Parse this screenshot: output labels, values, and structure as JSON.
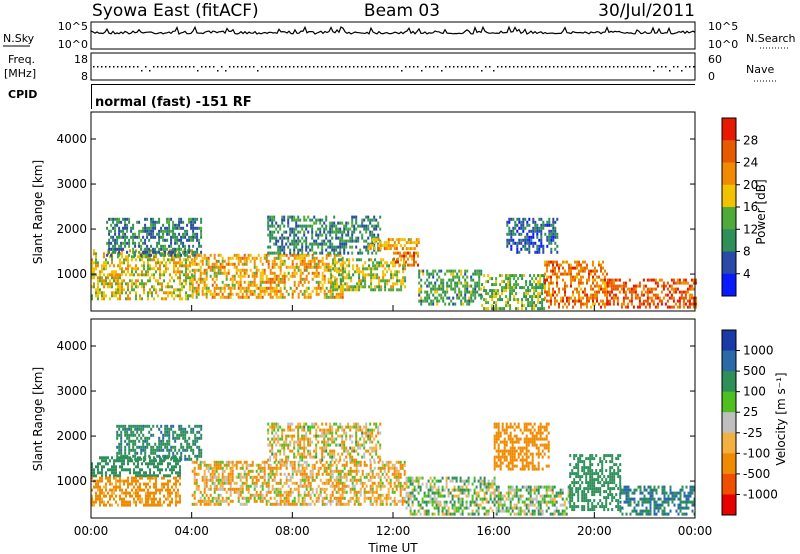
{
  "header": {
    "station": "Syowa East (fitACF)",
    "beam": "Beam 03",
    "date": "30/Jul/2011"
  },
  "noise_panel": {
    "left_label": "N.Sky",
    "left_ticks": [
      "10^5",
      "10^0"
    ],
    "right_ticks": [
      "10^5",
      "10^0"
    ],
    "right_label": "N.Search"
  },
  "freq_panel": {
    "left_label_top": "Freq.",
    "left_label_bottom": "[MHz]",
    "left_ticks": [
      "18",
      "8"
    ],
    "right_ticks": [
      "60",
      "0"
    ],
    "right_label": "Nave"
  },
  "cpid": {
    "label": "CPID",
    "value": "normal (fast) -151 RF"
  },
  "colors": {
    "power": [
      "#0a1aff",
      "#2a4aa8",
      "#2e8f58",
      "#4faa3a",
      "#f2c200",
      "#f08a00",
      "#e65a00",
      "#e61a00"
    ],
    "velocity": [
      "#e60000",
      "#ee5000",
      "#f08a00",
      "#f2b040",
      "#bfbfbf",
      "#4ec020",
      "#2e8f58",
      "#2a6aa8",
      "#1a3aa8"
    ]
  },
  "power_colorbar": {
    "label": "Power [dB]",
    "ticks": [
      "28",
      "24",
      "20",
      "16",
      "12",
      "8",
      "4"
    ]
  },
  "velocity_colorbar": {
    "label": "Velocity [m s⁻¹]",
    "ticks": [
      "1000",
      "500",
      "100",
      "25",
      "-25",
      "-100",
      "-500",
      "-1000"
    ]
  },
  "x_axis": {
    "label": "Time UT",
    "ticks": [
      "00:00",
      "04:00",
      "08:00",
      "12:00",
      "16:00",
      "20:00",
      "00:00"
    ]
  },
  "chart_data": [
    {
      "type": "heatmap",
      "parameter": "power",
      "ylabel": "Slant Range [km]",
      "xlabel": "Time UT",
      "x_range_hours": [
        0,
        24
      ],
      "ylim": [
        180,
        4600
      ],
      "yticks": [
        1000,
        2000,
        3000,
        4000
      ],
      "color_scale_db": [
        0,
        32
      ],
      "echo_regions": [
        {
          "t_start": 0.0,
          "t_end": 4.0,
          "r_min": 450,
          "r_max": 1550,
          "level": 18
        },
        {
          "t_start": 0.6,
          "t_end": 4.4,
          "r_min": 1400,
          "r_max": 2250,
          "level": 9
        },
        {
          "t_start": 4.0,
          "t_end": 10.0,
          "r_min": 500,
          "r_max": 1450,
          "level": 20
        },
        {
          "t_start": 7.0,
          "t_end": 11.5,
          "r_min": 1500,
          "r_max": 2300,
          "level": 10
        },
        {
          "t_start": 9.5,
          "t_end": 12.5,
          "r_min": 650,
          "r_max": 1350,
          "level": 16
        },
        {
          "t_start": 11.0,
          "t_end": 13.0,
          "r_min": 1550,
          "r_max": 1800,
          "level": 20
        },
        {
          "t_start": 12.0,
          "t_end": 13.0,
          "r_min": 1200,
          "r_max": 1500,
          "level": 24
        },
        {
          "t_start": 13.0,
          "t_end": 15.5,
          "r_min": 350,
          "r_max": 1100,
          "level": 12
        },
        {
          "t_start": 15.5,
          "t_end": 18.0,
          "r_min": 250,
          "r_max": 1000,
          "level": 14
        },
        {
          "t_start": 16.5,
          "t_end": 18.5,
          "r_min": 1500,
          "r_max": 2250,
          "level": 7
        },
        {
          "t_start": 18.0,
          "t_end": 20.5,
          "r_min": 250,
          "r_max": 1300,
          "level": 24
        },
        {
          "t_start": 20.5,
          "t_end": 24.0,
          "r_min": 250,
          "r_max": 900,
          "level": 26
        }
      ]
    },
    {
      "type": "heatmap",
      "parameter": "velocity",
      "ylabel": "Slant Range [km]",
      "xlabel": "Time UT",
      "x_range_hours": [
        0,
        24
      ],
      "ylim": [
        180,
        4600
      ],
      "yticks": [
        1000,
        2000,
        3000,
        4000
      ],
      "color_scale_ms": [
        -1000,
        1000
      ],
      "echo_regions": [
        {
          "t_start": 0.0,
          "t_end": 3.5,
          "r_min": 1100,
          "r_max": 1550,
          "velocity": 300
        },
        {
          "t_start": 0.0,
          "t_end": 3.5,
          "r_min": 450,
          "r_max": 1100,
          "velocity": -200
        },
        {
          "t_start": 1.0,
          "t_end": 4.4,
          "r_min": 1500,
          "r_max": 2250,
          "velocity": 400
        },
        {
          "t_start": 4.0,
          "t_end": 12.5,
          "r_min": 500,
          "r_max": 1450,
          "velocity": -80
        },
        {
          "t_start": 7.0,
          "t_end": 11.5,
          "r_min": 1450,
          "r_max": 2300,
          "velocity": -40
        },
        {
          "t_start": 12.5,
          "t_end": 16.0,
          "r_min": 300,
          "r_max": 1100,
          "velocity": 60
        },
        {
          "t_start": 16.0,
          "t_end": 18.2,
          "r_min": 1300,
          "r_max": 2300,
          "velocity": -250
        },
        {
          "t_start": 16.0,
          "t_end": 19.0,
          "r_min": 250,
          "r_max": 900,
          "velocity": 60
        },
        {
          "t_start": 19.0,
          "t_end": 21.0,
          "r_min": 400,
          "r_max": 1600,
          "velocity": 350
        },
        {
          "t_start": 21.0,
          "t_end": 24.0,
          "r_min": 250,
          "r_max": 900,
          "velocity": 500
        }
      ]
    }
  ]
}
